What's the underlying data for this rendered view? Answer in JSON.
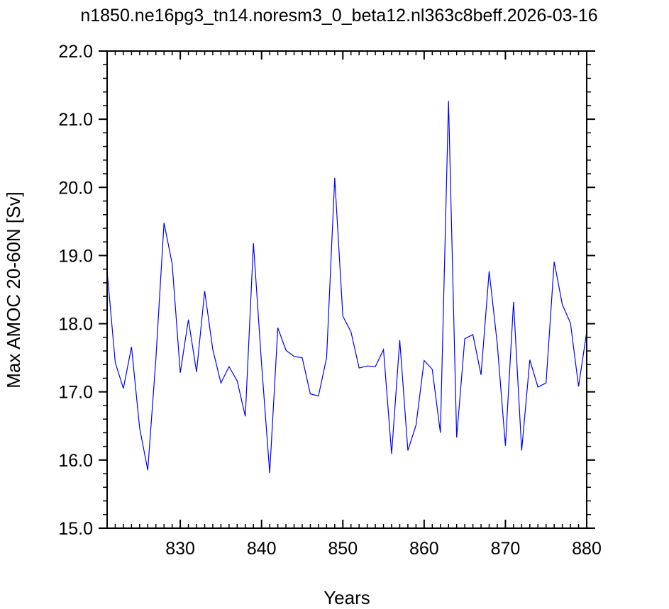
{
  "chart_data": {
    "type": "line",
    "title": "n1850.ne16pg3_tn14.noresm3_0_beta12.nl363c8beff.2026-03-16",
    "xlabel": "Years",
    "ylabel": "Max AMOC 20-60N [Sv]",
    "xlim": [
      821,
      880
    ],
    "ylim": [
      15.0,
      22.0
    ],
    "x_ticks": [
      830,
      840,
      850,
      860,
      870,
      880
    ],
    "x_tick_labels": [
      "830",
      "840",
      "850",
      "860",
      "870",
      "880"
    ],
    "y_ticks": [
      15.0,
      16.0,
      17.0,
      18.0,
      19.0,
      20.0,
      21.0,
      22.0
    ],
    "y_tick_labels": [
      "15.0",
      "16.0",
      "17.0",
      "18.0",
      "19.0",
      "20.0",
      "21.0",
      "22.0"
    ],
    "grid": false,
    "line_color": "#0000ff",
    "x": [
      821,
      822,
      823,
      824,
      825,
      826,
      827,
      828,
      829,
      830,
      831,
      832,
      833,
      834,
      835,
      836,
      837,
      838,
      839,
      840,
      841,
      842,
      843,
      844,
      845,
      846,
      847,
      848,
      849,
      850,
      851,
      852,
      853,
      854,
      855,
      856,
      857,
      858,
      859,
      860,
      861,
      862,
      863,
      864,
      865,
      866,
      867,
      868,
      869,
      870,
      871,
      872,
      873,
      874,
      875,
      876,
      877,
      878,
      879,
      880
    ],
    "y": [
      18.77,
      17.43,
      17.05,
      17.66,
      16.47,
      15.85,
      17.49,
      19.48,
      18.88,
      17.28,
      18.06,
      17.29,
      18.48,
      17.62,
      17.13,
      17.37,
      17.16,
      16.64,
      19.18,
      17.41,
      15.81,
      17.94,
      17.61,
      17.52,
      17.5,
      16.97,
      16.94,
      17.5,
      20.14,
      18.11,
      17.88,
      17.35,
      17.38,
      17.37,
      17.62,
      16.09,
      17.76,
      16.14,
      16.51,
      17.46,
      17.33,
      16.4,
      21.27,
      16.33,
      17.78,
      17.84,
      17.25,
      18.77,
      17.7,
      16.21,
      18.32,
      16.14,
      17.47,
      17.07,
      17.13,
      18.91,
      18.28,
      18.01,
      17.08,
      17.88
    ]
  }
}
